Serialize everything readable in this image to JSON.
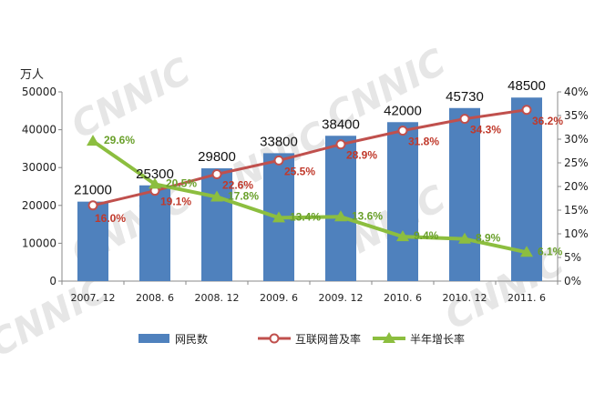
{
  "watermark": "CNNIC",
  "chart_data": {
    "type": "bar",
    "categories": [
      "2007. 12",
      "2008. 6",
      "2008. 12",
      "2009. 6",
      "2009. 12",
      "2010. 6",
      "2010. 12",
      "2011. 6"
    ],
    "left_axis": {
      "unit_label": "万人",
      "ylim": [
        0,
        50000
      ],
      "ticks": [
        "0",
        "10000",
        "20000",
        "30000",
        "40000",
        "50000"
      ]
    },
    "right_axis": {
      "ylim": [
        0,
        40
      ],
      "ticks": [
        "0%",
        "5%",
        "10%",
        "15%",
        "20%",
        "25%",
        "30%",
        "35%",
        "40%"
      ]
    },
    "series": [
      {
        "name": "网民数",
        "type": "bar",
        "axis": "left",
        "color": "#4f81bd",
        "values": [
          21000,
          25300,
          29800,
          33800,
          38400,
          42000,
          45730,
          48500
        ],
        "labels": [
          "21000",
          "25300",
          "29800",
          "33800",
          "38400",
          "42000",
          "45730",
          "48500"
        ]
      },
      {
        "name": "互联网普及率",
        "type": "line",
        "axis": "right",
        "color": "#c0504d",
        "marker": "circle",
        "values": [
          16.0,
          19.1,
          22.6,
          25.5,
          28.9,
          31.8,
          34.3,
          36.2
        ],
        "labels": [
          "16.0%",
          "19.1%",
          "22.6%",
          "25.5%",
          "28.9%",
          "31.8%",
          "34.3%",
          "36.2%"
        ]
      },
      {
        "name": "半年增长率",
        "type": "line",
        "axis": "right",
        "color": "#8cbe3f",
        "marker": "triangle",
        "values": [
          29.6,
          20.5,
          17.8,
          13.4,
          13.6,
          9.4,
          8.9,
          6.1
        ],
        "labels": [
          "29.6%",
          "20.5%",
          "17.8%",
          "13.4%",
          "13.6%",
          "9.4%",
          "8.9%",
          "6.1%"
        ]
      }
    ],
    "legend_position": "bottom",
    "grid": false
  }
}
